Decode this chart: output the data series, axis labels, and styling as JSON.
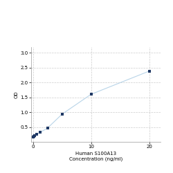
{
  "x": [
    0,
    0.156,
    0.313,
    0.625,
    1.25,
    2.5,
    5,
    10,
    20
  ],
  "y": [
    0.172,
    0.192,
    0.21,
    0.25,
    0.32,
    0.46,
    0.93,
    1.6,
    2.38
  ],
  "line_color": "#b8d4e8",
  "marker_color": "#1f3864",
  "marker_style": "s",
  "marker_size": 3.5,
  "xlabel_line1": "Human S100A13",
  "xlabel_line2": "Concentration (ng/ml)",
  "xtick_label": "10",
  "ylabel": "OD",
  "xlim": [
    -0.3,
    22
  ],
  "ylim": [
    0.0,
    3.2
  ],
  "yticks": [
    0.5,
    1.0,
    1.5,
    2.0,
    2.5,
    3.0
  ],
  "xticks": [
    0,
    10,
    20
  ],
  "xtick_labels": [
    "0",
    "10",
    "20"
  ],
  "grid_color": "#cccccc",
  "background_color": "#ffffff",
  "font_size_label": 5.0,
  "font_size_tick": 5.0
}
